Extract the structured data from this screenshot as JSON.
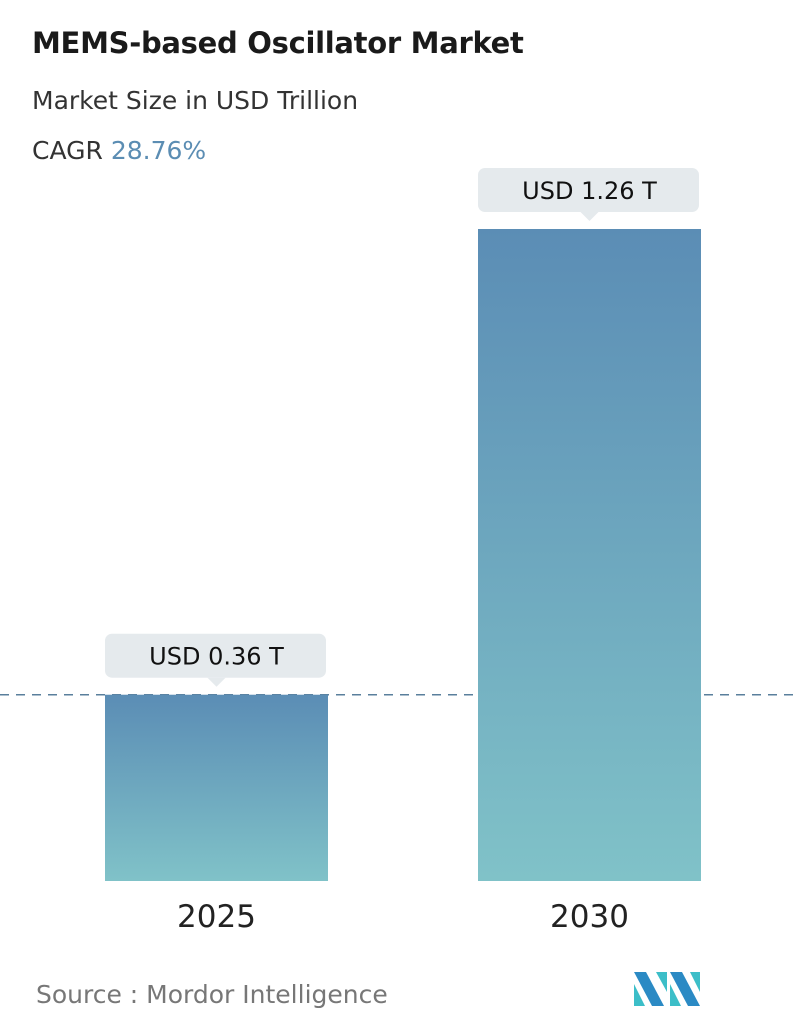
{
  "title": "MEMS-based Oscillator Market",
  "subtitle": "Market Size in USD Trillion",
  "cagr_label": "CAGR",
  "cagr_value": "28.76%",
  "source": "Source :  Mordor Intelligence",
  "colors": {
    "bar_top": "#5b8db5",
    "bar_bottom": "#80c2c8",
    "callout": "#e5eaed",
    "accent": "#5b8db3"
  },
  "chart_data": {
    "type": "bar",
    "categories": [
      "2025",
      "2030"
    ],
    "values": [
      0.36,
      1.26
    ],
    "data_labels": [
      "USD 0.36 T",
      "USD 1.26 T"
    ],
    "ylabel": "",
    "xlabel": "",
    "grid": false,
    "reference_line": "dashed line at 2025 value"
  }
}
